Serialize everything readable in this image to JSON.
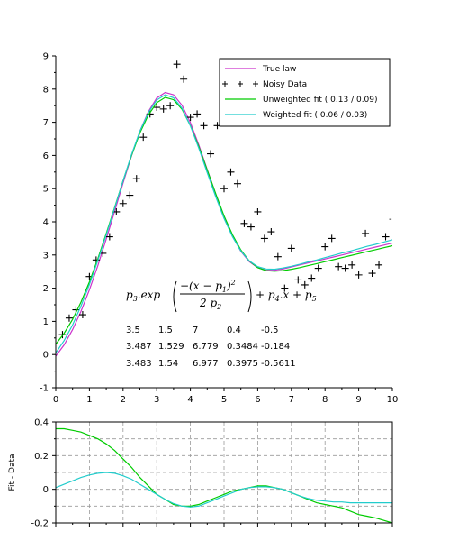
{
  "chart_data": [
    {
      "type": "line",
      "xlim": [
        0,
        10
      ],
      "ylim": [
        -1,
        9
      ],
      "xticks": [
        "0",
        "1",
        "2",
        "3",
        "4",
        "5",
        "6",
        "7",
        "8",
        "9",
        "10"
      ],
      "yticks": [
        "-1",
        "0",
        "1",
        "2",
        "3",
        "4",
        "5",
        "6",
        "7",
        "8",
        "9"
      ],
      "grid": false,
      "legend_placement": "top-right",
      "series": [
        {
          "name": "True law",
          "color": "#cc33cc",
          "x": [
            0,
            0.25,
            0.5,
            0.75,
            1,
            1.25,
            1.5,
            1.75,
            2,
            2.25,
            2.5,
            2.75,
            3,
            3.25,
            3.5,
            3.75,
            4,
            4.25,
            4.5,
            4.75,
            5,
            5.25,
            5.5,
            5.75,
            6,
            6.25,
            6.5,
            6.75,
            7,
            7.25,
            7.5,
            7.75,
            8,
            8.25,
            8.5,
            8.75,
            9,
            9.25,
            9.5,
            9.75,
            10
          ],
          "values": [
            -0.05,
            0.29,
            0.75,
            1.3,
            1.95,
            2.68,
            3.48,
            4.32,
            5.17,
            5.99,
            6.73,
            7.32,
            7.73,
            7.9,
            7.83,
            7.51,
            6.99,
            6.32,
            5.58,
            4.84,
            4.15,
            3.57,
            3.11,
            2.8,
            2.62,
            2.54,
            2.54,
            2.58,
            2.64,
            2.7,
            2.76,
            2.82,
            2.88,
            2.94,
            3.0,
            3.06,
            3.12,
            3.18,
            3.24,
            3.3,
            3.36
          ]
        },
        {
          "name": "Noisy Data",
          "color": "#000000",
          "marker": "+",
          "x": [
            0.2,
            0.4,
            0.6,
            0.8,
            1.0,
            1.2,
            1.4,
            1.6,
            1.8,
            2.0,
            2.2,
            2.4,
            2.6,
            2.8,
            3.0,
            3.2,
            3.4,
            3.6,
            3.8,
            4.0,
            4.2,
            4.4,
            4.6,
            4.8,
            5.0,
            5.2,
            5.4,
            5.6,
            5.8,
            6.0,
            6.2,
            6.4,
            6.6,
            6.8,
            7.0,
            7.2,
            7.4,
            7.6,
            7.8,
            8.0,
            8.2,
            8.4,
            8.6,
            8.8,
            9.0,
            9.2,
            9.4,
            9.6,
            9.8
          ],
          "values": [
            0.6,
            1.1,
            1.35,
            1.2,
            2.35,
            2.85,
            3.05,
            3.55,
            4.3,
            4.55,
            4.8,
            5.3,
            6.55,
            7.25,
            7.45,
            7.4,
            7.5,
            8.75,
            8.3,
            7.15,
            7.25,
            6.9,
            6.05,
            6.9,
            5.0,
            5.5,
            5.15,
            3.95,
            3.85,
            4.3,
            3.5,
            3.7,
            2.95,
            2.0,
            3.2,
            2.25,
            2.1,
            2.3,
            2.6,
            3.25,
            3.5,
            2.65,
            2.6,
            2.7,
            2.4,
            3.65,
            2.45,
            2.7,
            3.55
          ]
        },
        {
          "name": "Unweighted fit ( 0.13 / 0.09)",
          "color": "#00cc00",
          "x": [
            0,
            0.25,
            0.5,
            0.75,
            1,
            1.25,
            1.5,
            1.75,
            2,
            2.25,
            2.5,
            2.75,
            3,
            3.25,
            3.5,
            3.75,
            4,
            4.25,
            4.5,
            4.75,
            5,
            5.25,
            5.5,
            5.75,
            6,
            6.25,
            6.5,
            6.75,
            7,
            7.25,
            7.5,
            7.75,
            8,
            8.25,
            8.5,
            8.75,
            9,
            9.25,
            9.5,
            9.75,
            10
          ],
          "values": [
            0.31,
            0.64,
            1.06,
            1.58,
            2.19,
            2.89,
            3.65,
            4.44,
            5.24,
            6.0,
            6.68,
            7.22,
            7.59,
            7.75,
            7.68,
            7.39,
            6.9,
            6.27,
            5.56,
            4.85,
            4.18,
            3.61,
            3.15,
            2.82,
            2.62,
            2.53,
            2.51,
            2.53,
            2.57,
            2.62,
            2.68,
            2.74,
            2.8,
            2.86,
            2.92,
            2.98,
            3.04,
            3.1,
            3.16,
            3.22,
            3.28
          ]
        },
        {
          "name": "Weighted fit ( 0.06 / 0.03)",
          "color": "#22cccc",
          "x": [
            0,
            0.25,
            0.5,
            0.75,
            1,
            1.25,
            1.5,
            1.75,
            2,
            2.25,
            2.5,
            2.75,
            3,
            3.25,
            3.5,
            3.75,
            4,
            4.25,
            4.5,
            4.75,
            5,
            5.25,
            5.5,
            5.75,
            6,
            6.25,
            6.5,
            6.75,
            7,
            7.25,
            7.5,
            7.75,
            8,
            8.25,
            8.5,
            8.75,
            9,
            9.25,
            9.5,
            9.75,
            10
          ],
          "values": [
            0.05,
            0.42,
            0.89,
            1.46,
            2.11,
            2.84,
            3.61,
            4.42,
            5.24,
            6.03,
            6.73,
            7.29,
            7.67,
            7.83,
            7.74,
            7.42,
            6.89,
            6.22,
            5.48,
            4.76,
            4.1,
            3.55,
            3.12,
            2.82,
            2.65,
            2.58,
            2.57,
            2.61,
            2.66,
            2.72,
            2.79,
            2.85,
            2.92,
            2.99,
            3.06,
            3.12,
            3.19,
            3.26,
            3.32,
            3.39,
            3.46
          ]
        }
      ],
      "formula": "p3.exp( −(x − p1)² / 2 p2 ) + p4.x + p5",
      "formula_parts": {
        "lead": "p",
        "lead_sub": "3",
        "exp": ".exp",
        "num_a": "−(x − p",
        "num_sub": "1",
        "num_b": ")",
        "num_sup": "2",
        "den_a": "2 p",
        "den_sub": "2",
        "tail_a": "+ p",
        "tail_sub1": "4",
        "tail_b": ".x + p",
        "tail_sub2": "5"
      },
      "param_rows": [
        [
          "3.5",
          "1.5",
          "7",
          "0.4",
          "-0.5"
        ],
        [
          "3.487",
          "1.529",
          "6.779",
          "0.3484",
          "-0.184"
        ],
        [
          "3.483",
          "1.54",
          "6.977",
          "0.3975",
          "-0.5611"
        ]
      ],
      "stray_dash": "-"
    },
    {
      "type": "line",
      "xlim": [
        0,
        10
      ],
      "ylim": [
        -0.2,
        0.4
      ],
      "yticks": [
        "-0.2",
        "0",
        "0.2",
        "0.4"
      ],
      "ylabel": "Fit - Data",
      "grid": true,
      "series": [
        {
          "color": "#00cc00",
          "x": [
            0,
            0.25,
            0.5,
            0.75,
            1,
            1.25,
            1.5,
            1.75,
            2,
            2.25,
            2.5,
            2.75,
            3,
            3.25,
            3.5,
            3.75,
            4,
            4.25,
            4.5,
            4.75,
            5,
            5.25,
            5.5,
            5.75,
            6,
            6.25,
            6.5,
            6.75,
            7,
            7.25,
            7.5,
            7.75,
            8,
            8.25,
            8.5,
            8.75,
            9,
            9.25,
            9.5,
            9.75,
            10
          ],
          "values": [
            0.36,
            0.36,
            0.35,
            0.34,
            0.32,
            0.3,
            0.27,
            0.23,
            0.18,
            0.13,
            0.07,
            0.02,
            -0.03,
            -0.06,
            -0.09,
            -0.1,
            -0.1,
            -0.09,
            -0.07,
            -0.05,
            -0.03,
            -0.01,
            0.0,
            0.01,
            0.02,
            0.02,
            0.01,
            0.0,
            -0.02,
            -0.04,
            -0.06,
            -0.08,
            -0.09,
            -0.1,
            -0.11,
            -0.13,
            -0.15,
            -0.16,
            -0.17,
            -0.185,
            -0.2
          ]
        },
        {
          "color": "#22cccc",
          "x": [
            0,
            0.25,
            0.5,
            0.75,
            1,
            1.25,
            1.5,
            1.75,
            2,
            2.25,
            2.5,
            2.75,
            3,
            3.25,
            3.5,
            3.75,
            4,
            4.25,
            4.5,
            4.75,
            5,
            5.25,
            5.5,
            5.75,
            6,
            6.25,
            6.5,
            6.75,
            7,
            7.25,
            7.5,
            7.75,
            8,
            8.25,
            8.5,
            8.75,
            9,
            9.25,
            9.5,
            9.75,
            10
          ],
          "values": [
            0.01,
            0.03,
            0.05,
            0.07,
            0.085,
            0.095,
            0.1,
            0.095,
            0.08,
            0.06,
            0.03,
            0.0,
            -0.03,
            -0.06,
            -0.085,
            -0.1,
            -0.105,
            -0.1,
            -0.08,
            -0.06,
            -0.04,
            -0.02,
            0.0,
            0.01,
            0.015,
            0.015,
            0.01,
            0.0,
            -0.02,
            -0.04,
            -0.055,
            -0.065,
            -0.07,
            -0.075,
            -0.075,
            -0.08,
            -0.08,
            -0.08,
            -0.08,
            -0.08,
            -0.08
          ]
        }
      ]
    }
  ]
}
